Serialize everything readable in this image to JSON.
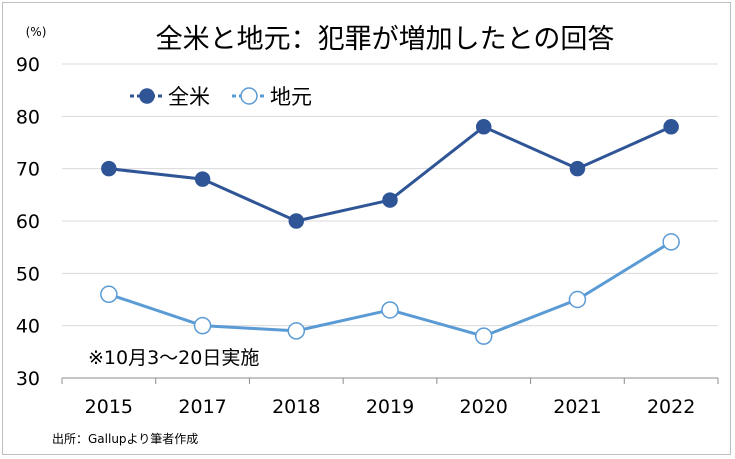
{
  "chart_data": {
    "type": "line",
    "title": "全米と地元：犯罪が増加したとの回答",
    "unit_label": "(%)",
    "categories": [
      "2015",
      "2017",
      "2018",
      "2019",
      "2020",
      "2021",
      "2022"
    ],
    "ylim": [
      30,
      90
    ],
    "yticks": [
      30,
      40,
      50,
      60,
      70,
      80,
      90
    ],
    "grid": true,
    "legend_position": "top-left",
    "annotation": "※10月3～20日実施",
    "source": "出所：Gallupより筆者作成",
    "series": [
      {
        "name": "全米",
        "values": [
          70,
          68,
          60,
          64,
          78,
          70,
          78
        ],
        "color": "#2f5597",
        "marker": "filled-circle"
      },
      {
        "name": "地元",
        "values": [
          46,
          40,
          39,
          43,
          38,
          45,
          56
        ],
        "color": "#5b9bd5",
        "marker": "hollow-circle"
      }
    ]
  }
}
